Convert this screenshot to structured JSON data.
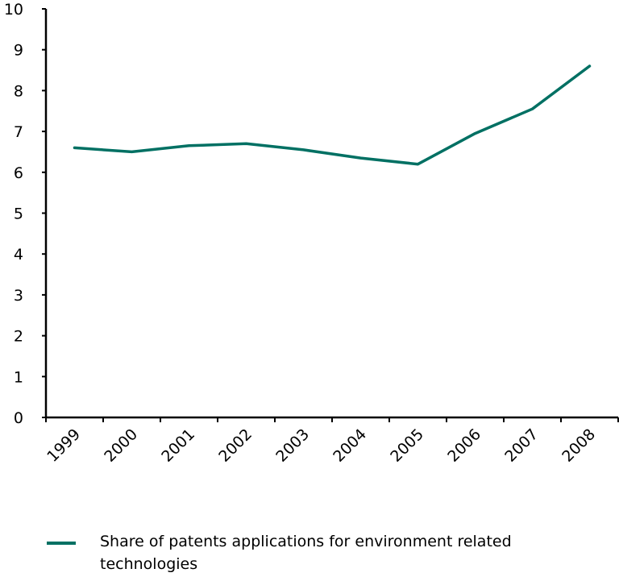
{
  "chart_data": {
    "type": "line",
    "title": "",
    "xlabel": "",
    "ylabel": "",
    "categories": [
      "1999",
      "2000",
      "2001",
      "2002",
      "2003",
      "2004",
      "2005",
      "2006",
      "2007",
      "2008"
    ],
    "series": [
      {
        "name": "Share of patents applications for environment related technologies",
        "color": "#007063",
        "values": [
          6.6,
          6.5,
          6.65,
          6.7,
          6.55,
          6.35,
          6.2,
          6.95,
          7.55,
          8.6
        ]
      }
    ],
    "ylim": [
      0,
      10
    ],
    "yticks": [
      "0",
      "1",
      "2",
      "3",
      "4",
      "5",
      "6",
      "7",
      "8",
      "9",
      "10"
    ],
    "grid": false,
    "legend_position": "bottom"
  }
}
